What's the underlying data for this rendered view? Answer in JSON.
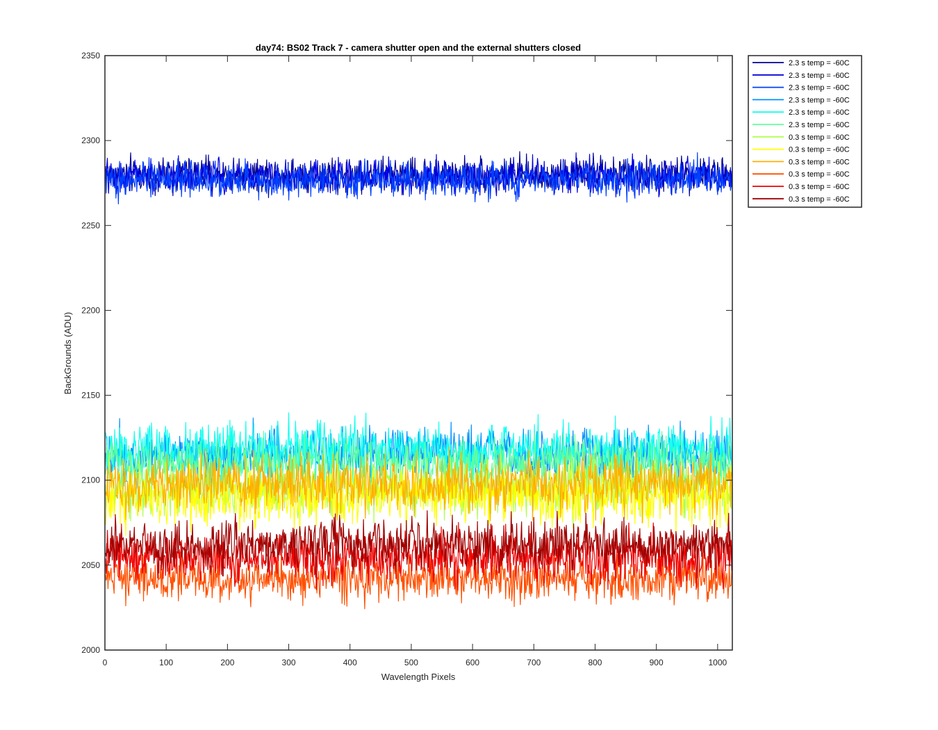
{
  "chart_data": {
    "type": "line",
    "title": "day74: BS02  Track 7 - camera shutter open and the external shutters closed",
    "xlabel": "Wavelength Pixels",
    "ylabel": "BackGrounds (ADU)",
    "xlim": [
      0,
      1024
    ],
    "ylim": [
      2000,
      2350
    ],
    "xticks": [
      0,
      100,
      200,
      300,
      400,
      500,
      600,
      700,
      800,
      900,
      1000
    ],
    "yticks": [
      2000,
      2050,
      2100,
      2150,
      2200,
      2250,
      2300,
      2350
    ],
    "grid": false,
    "legend_position": "outside-top-right",
    "series": [
      {
        "name": "2.3 s temp = -60C",
        "color": "#00008f",
        "x_range": [
          1,
          1024
        ],
        "mean": 2280,
        "noise_amplitude": 9
      },
      {
        "name": "2.3 s temp = -60C",
        "color": "#0000df",
        "x_range": [
          1,
          1024
        ],
        "mean": 2279,
        "noise_amplitude": 9
      },
      {
        "name": "2.3 s temp = -60C",
        "color": "#0040ff",
        "x_range": [
          1,
          1024
        ],
        "mean": 2277,
        "noise_amplitude": 9
      },
      {
        "name": "2.3 s temp = -60C",
        "color": "#0090ff",
        "x_range": [
          1,
          1024
        ],
        "mean": 2115,
        "noise_amplitude": 14
      },
      {
        "name": "2.3 s temp = -60C",
        "color": "#10ffef",
        "x_range": [
          1,
          1024
        ],
        "mean": 2118,
        "noise_amplitude": 14
      },
      {
        "name": "2.3 s temp = -60C",
        "color": "#60ff9f",
        "x_range": [
          1,
          1024
        ],
        "mean": 2110,
        "noise_amplitude": 13
      },
      {
        "name": "0.3 s temp = -60C",
        "color": "#afff50",
        "x_range": [
          1,
          1024
        ],
        "mean": 2095,
        "noise_amplitude": 15
      },
      {
        "name": "0.3 s temp = -60C",
        "color": "#ffff00",
        "x_range": [
          1,
          1024
        ],
        "mean": 2090,
        "noise_amplitude": 15
      },
      {
        "name": "0.3 s temp = -60C",
        "color": "#ffaf00",
        "x_range": [
          1,
          1024
        ],
        "mean": 2098,
        "noise_amplitude": 15
      },
      {
        "name": "0.3 s temp = -60C",
        "color": "#ff5000",
        "x_range": [
          1,
          1024
        ],
        "mean": 2042,
        "noise_amplitude": 12
      },
      {
        "name": "0.3 s temp = -60C",
        "color": "#ef0000",
        "x_range": [
          1,
          1024
        ],
        "mean": 2055,
        "noise_amplitude": 13
      },
      {
        "name": "0.3 s temp = -60C",
        "color": "#9f0000",
        "x_range": [
          1,
          1024
        ],
        "mean": 2062,
        "noise_amplitude": 13
      }
    ]
  }
}
